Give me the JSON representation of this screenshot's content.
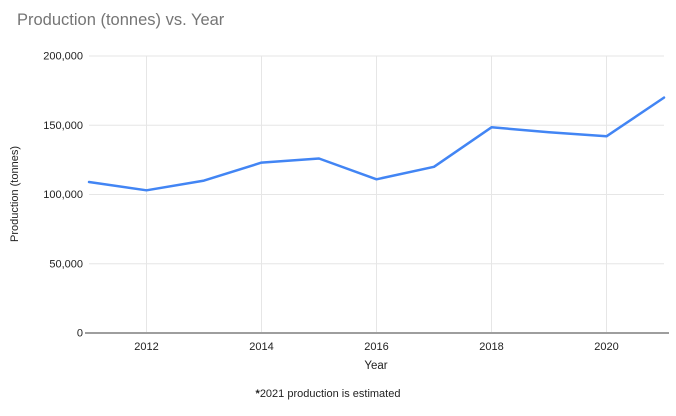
{
  "footnote": {
    "asterisk": "*",
    "text": "2021 production is estimated"
  },
  "colors": {
    "line": "#4285f4",
    "gridline": "#e6e6e6",
    "axis_line": "#9e9e9e",
    "title_text": "#757575",
    "tick_label": "#222222",
    "background": "#ffffff"
  },
  "chart_data": {
    "type": "line",
    "title": "Production (tonnes) vs. Year",
    "xlabel": "Year",
    "ylabel": "Production (tonnes)",
    "x": [
      2011,
      2012,
      2013,
      2014,
      2015,
      2016,
      2017,
      2018,
      2019,
      2020,
      2021
    ],
    "values": [
      109000,
      103000,
      110000,
      123000,
      126000,
      111000,
      120000,
      148500,
      145000,
      142000,
      170000
    ],
    "series_name": "Production (tonnes)",
    "xticks": [
      2012,
      2014,
      2016,
      2018,
      2020
    ],
    "yticks": [
      0,
      50000,
      100000,
      150000,
      200000
    ],
    "xlim": [
      2011,
      2021
    ],
    "ylim": [
      0,
      200000
    ],
    "grid": true,
    "legend": "none",
    "line_color": "#4285f4",
    "annotation": "*2021 production is estimated"
  }
}
